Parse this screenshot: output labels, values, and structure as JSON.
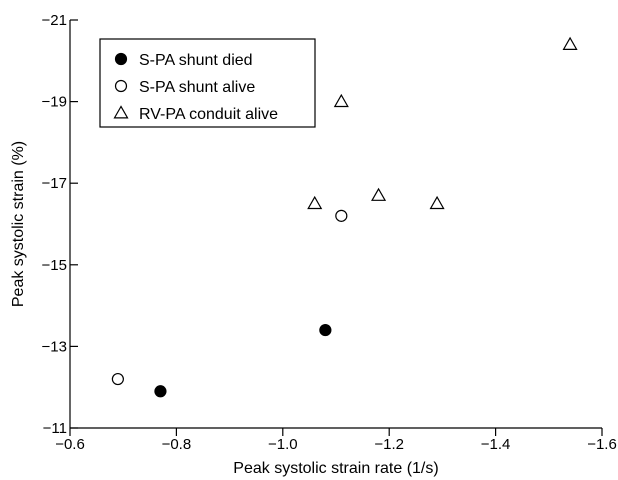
{
  "chart_data": {
    "type": "scatter",
    "xlabel": "Peak systolic strain rate (1/s)",
    "ylabel": "Peak systolic strain (%)",
    "xlim": [
      -0.6,
      -1.6
    ],
    "ylim": [
      -11,
      -21
    ],
    "xticks": [
      -0.6,
      -0.8,
      -1.0,
      -1.2,
      -1.4,
      -1.6
    ],
    "xtick_labels": [
      "−0.6",
      "−0.8",
      "−1.0",
      "−1.2",
      "−1.4",
      "−1.6"
    ],
    "yticks": [
      -11,
      -13,
      -15,
      -17,
      -19,
      -21
    ],
    "ytick_labels": [
      "−11",
      "−13",
      "−15",
      "−17",
      "−19",
      "−21"
    ],
    "legend_position": "top-left",
    "series": [
      {
        "name": "S-PA shunt died",
        "marker": "filled-circle",
        "points": [
          {
            "x": -0.77,
            "y": -11.9
          },
          {
            "x": -1.08,
            "y": -13.4
          }
        ]
      },
      {
        "name": "S-PA shunt alive",
        "marker": "open-circle",
        "points": [
          {
            "x": -0.69,
            "y": -12.2
          },
          {
            "x": -1.11,
            "y": -16.2
          }
        ]
      },
      {
        "name": "RV-PA conduit alive",
        "marker": "open-triangle",
        "points": [
          {
            "x": -1.06,
            "y": -16.5
          },
          {
            "x": -1.11,
            "y": -19.0
          },
          {
            "x": -1.18,
            "y": -16.7
          },
          {
            "x": -1.29,
            "y": -16.5
          },
          {
            "x": -1.54,
            "y": -20.4
          }
        ]
      }
    ]
  }
}
